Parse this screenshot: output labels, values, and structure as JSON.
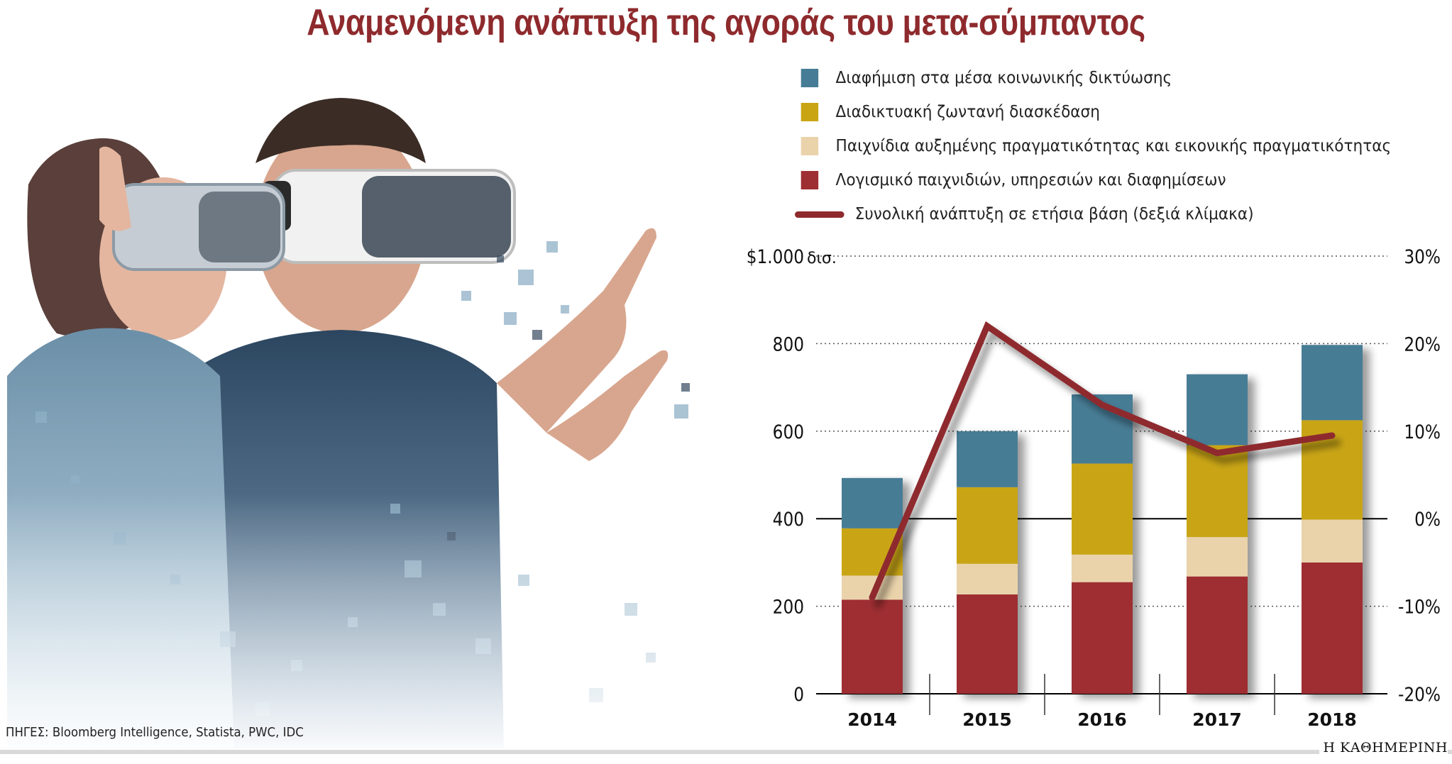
{
  "title": "Αναμενόμενη ανάπτυξη της αγοράς του μετα-σύμπαντος",
  "source": "ΠΗΓΕΣ: Bloomberg Intelligence, Statista, PWC, IDC",
  "brand": "Η ΚΑΘΗΜΕΡΙΝΗ",
  "chart_data": {
    "type": "bar",
    "stacked": true,
    "categories": [
      "2014",
      "2015",
      "2016",
      "2017",
      "2018"
    ],
    "series": [
      {
        "name": "Λογισμικό παιχνιδιών, υπηρεσιών και διαφημίσεων",
        "color": "#9e2f32",
        "values": [
          215,
          227,
          255,
          268,
          300
        ]
      },
      {
        "name": "Παιχνίδια αυξημένης πραγματικότητας και εικονικής πραγματικότητας",
        "color": "#ead3ab",
        "values": [
          55,
          70,
          63,
          90,
          98
        ]
      },
      {
        "name": "Διαδικτυακή ζωντανή διασκέδαση",
        "color": "#c9a514",
        "values": [
          108,
          175,
          208,
          210,
          227
        ]
      },
      {
        "name": "Διαφήμιση στα μέσα κοινωνικής δικτύωσης",
        "color": "#467c95",
        "values": [
          115,
          128,
          158,
          162,
          172
        ]
      }
    ],
    "line": {
      "name": "Συνολική ανάπτυξη σε ετήσια βάση (δεξιά κλίμακα)",
      "color": "#8e2a2d",
      "axis": "right",
      "values": [
        -9,
        22,
        13,
        7.5,
        9.5
      ]
    },
    "ylim": [
      0,
      1000
    ],
    "yticks": [
      0,
      200,
      400,
      600,
      800,
      1000
    ],
    "ytick_labels": [
      "0",
      "200",
      "400",
      "600",
      "800",
      "$1.000"
    ],
    "ylabel_unit": "δισ.",
    "y2lim": [
      -20,
      30
    ],
    "y2ticks": [
      -20,
      -10,
      0,
      10,
      20,
      30
    ],
    "y2tick_labels": [
      "-20%",
      "-10%",
      "0%",
      "10%",
      "20%",
      "30%"
    ],
    "legend_order": [
      "Διαφήμιση στα μέσα κοινωνικής δικτύωσης",
      "Διαδικτυακή ζωντανή διασκέδαση",
      "Παιχνίδια αυξημένης πραγματικότητας και εικονικής πραγματικότητας",
      "Λογισμικό παιχνιδιών, υπηρεσιών και διαφημίσεων",
      "Συνολική ανάπτυξη σε ετήσια βάση (δεξιά κλίμακα)"
    ]
  }
}
